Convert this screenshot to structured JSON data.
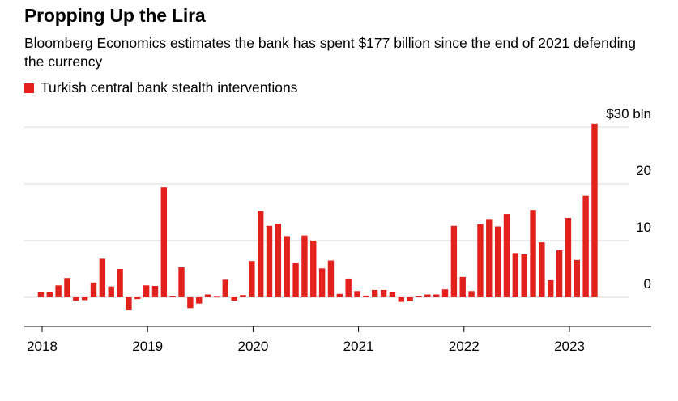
{
  "title": "Propping Up the Lira",
  "subtitle": "Bloomberg Economics estimates the bank has spent $177 billion since the end of 2021 defending the currency",
  "colors": {
    "bar": "#e3211c",
    "grid": "#d9d9d9",
    "axis": "#000000",
    "text": "#000000"
  },
  "chart_data": {
    "type": "bar",
    "series": [
      {
        "name": "Turkish central bank stealth interventions",
        "dates": [
          "2018-01",
          "2018-02",
          "2018-03",
          "2018-04",
          "2018-05",
          "2018-06",
          "2018-07",
          "2018-08",
          "2018-09",
          "2018-10",
          "2018-11",
          "2018-12",
          "2019-01",
          "2019-02",
          "2019-03",
          "2019-04",
          "2019-05",
          "2019-06",
          "2019-07",
          "2019-08",
          "2019-09",
          "2019-10",
          "2019-11",
          "2019-12",
          "2020-01",
          "2020-02",
          "2020-03",
          "2020-04",
          "2020-05",
          "2020-06",
          "2020-07",
          "2020-08",
          "2020-09",
          "2020-10",
          "2020-11",
          "2020-12",
          "2021-01",
          "2021-02",
          "2021-03",
          "2021-04",
          "2021-05",
          "2021-06",
          "2021-07",
          "2021-08",
          "2021-09",
          "2021-10",
          "2021-11",
          "2021-12",
          "2022-01",
          "2022-02",
          "2022-03",
          "2022-04",
          "2022-05",
          "2022-06",
          "2022-07",
          "2022-08",
          "2022-09",
          "2022-10",
          "2022-11",
          "2022-12",
          "2023-01",
          "2023-02",
          "2023-03",
          "2023-04"
        ],
        "values": [
          0.9,
          0.9,
          2.1,
          3.4,
          -0.6,
          -0.5,
          2.6,
          6.8,
          1.9,
          5.0,
          -2.3,
          -0.3,
          2.1,
          2.0,
          19.4,
          0.2,
          5.3,
          -1.9,
          -1.1,
          0.5,
          0.1,
          3.1,
          -0.6,
          0.4,
          6.4,
          15.2,
          12.6,
          13.0,
          10.8,
          6.0,
          10.9,
          10.0,
          5.1,
          6.5,
          0.6,
          3.3,
          1.1,
          0.3,
          1.3,
          1.3,
          1.0,
          -0.8,
          -0.7,
          0.2,
          0.5,
          0.5,
          1.4,
          12.6,
          3.6,
          1.1,
          12.9,
          13.8,
          12.5,
          14.7,
          7.8,
          7.6,
          15.4,
          9.7,
          3.0,
          8.3,
          14.0,
          6.6,
          17.9,
          30.6
        ]
      }
    ],
    "x_ticks": [
      "2018",
      "2019",
      "2020",
      "2021",
      "2022",
      "2023"
    ],
    "y_ticks": [
      "0",
      "10",
      "20",
      "$30 bln"
    ],
    "y_tick_values": [
      0,
      10,
      20,
      30
    ],
    "ylim": [
      -4.5,
      30.8
    ],
    "grid": true,
    "legend_position": "top-left"
  }
}
